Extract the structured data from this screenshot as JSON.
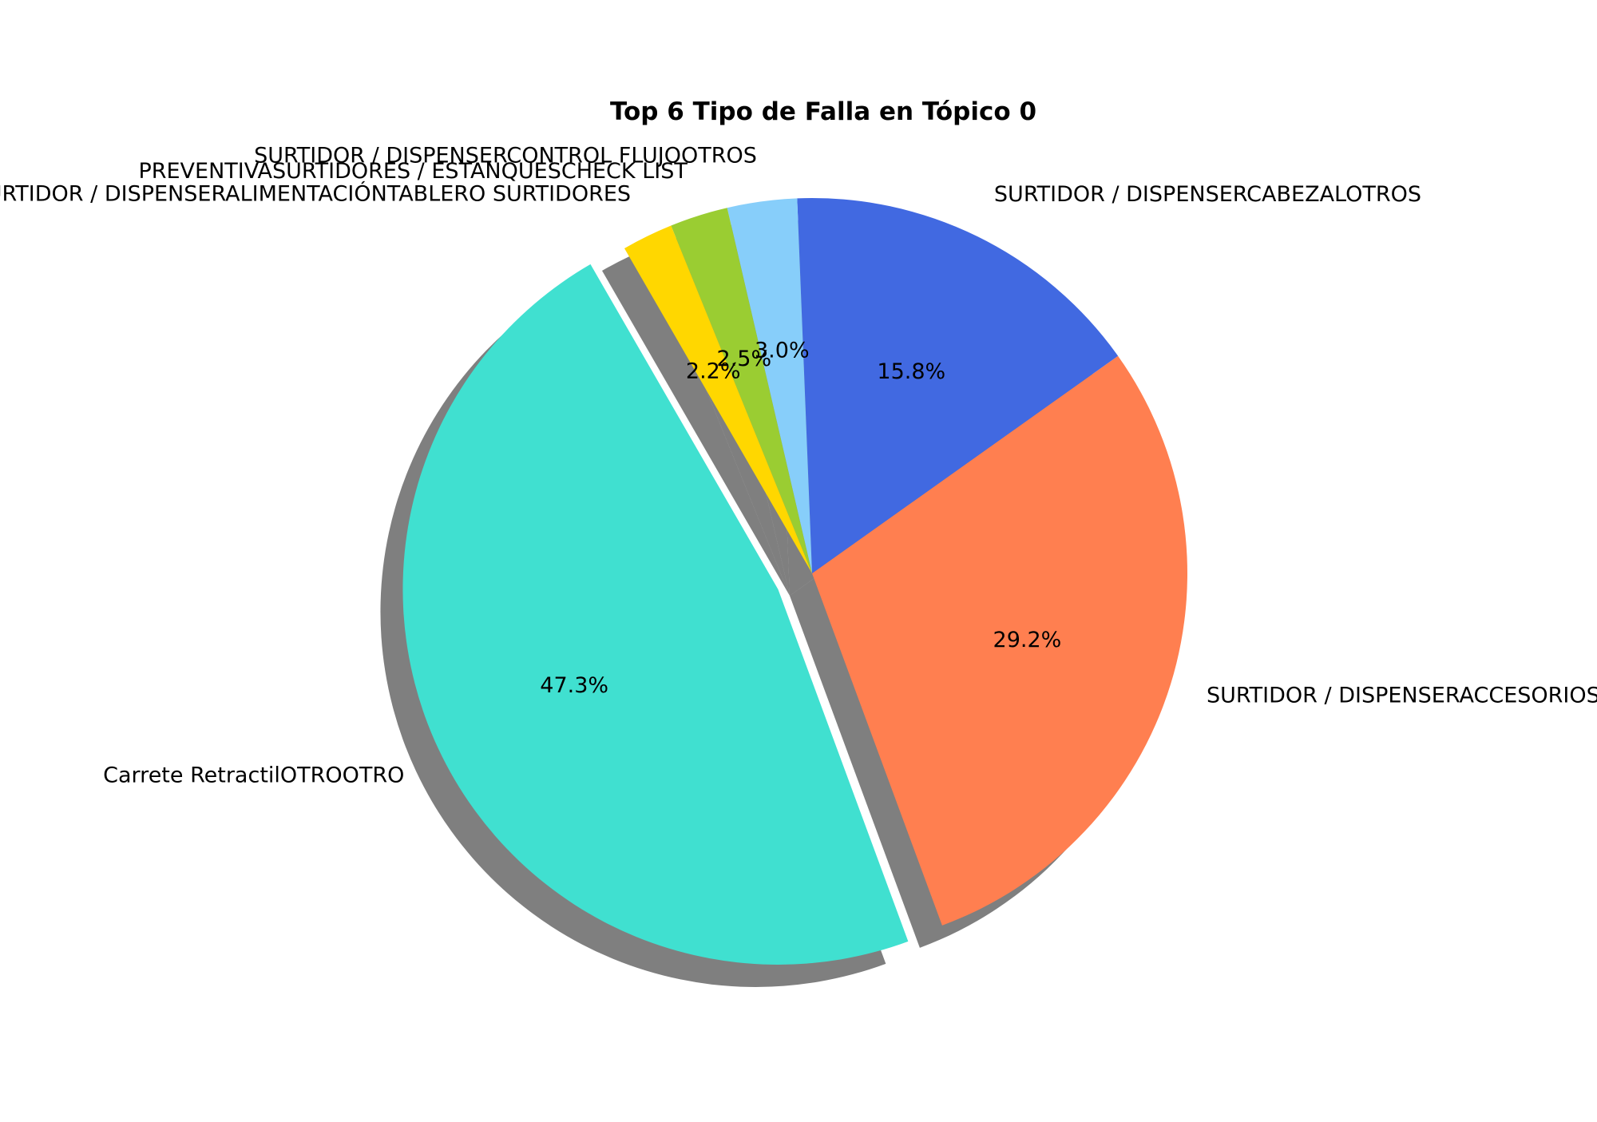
{
  "chart_data": {
    "type": "pie",
    "title": "Top 6 Tipo de Falla en Tópico 0",
    "categories": [
      "Carrete RetractilOTROOTRO",
      "SURTIDOR / DISPENSERACCESORIOS & FILTROSOTROS",
      "SURTIDOR / DISPENSERCABEZALOTROS",
      "SURTIDOR / DISPENSERCONTROL FLUJOOTROS",
      "PREVENTIVASURTIDORES / ESTANQUESCHECK LIST",
      "SURTIDOR / DISPENSERALIMENTACIÓNTABLERO SURTIDORES"
    ],
    "values": [
      47.3,
      29.2,
      15.8,
      3.0,
      2.5,
      2.2
    ],
    "percent_labels": [
      "47.3%",
      "29.2%",
      "15.8%",
      "3.0%",
      "2.5%",
      "2.2%"
    ],
    "colors": [
      "#40e0d0",
      "#ff7f50",
      "#4169e1",
      "#87cefa",
      "#9acd32",
      "#ffd700"
    ],
    "explode": [
      0.1,
      0,
      0,
      0,
      0,
      0
    ],
    "shadow": true,
    "start_angle": 120,
    "direction": "counterclockwise",
    "legend": "none"
  }
}
